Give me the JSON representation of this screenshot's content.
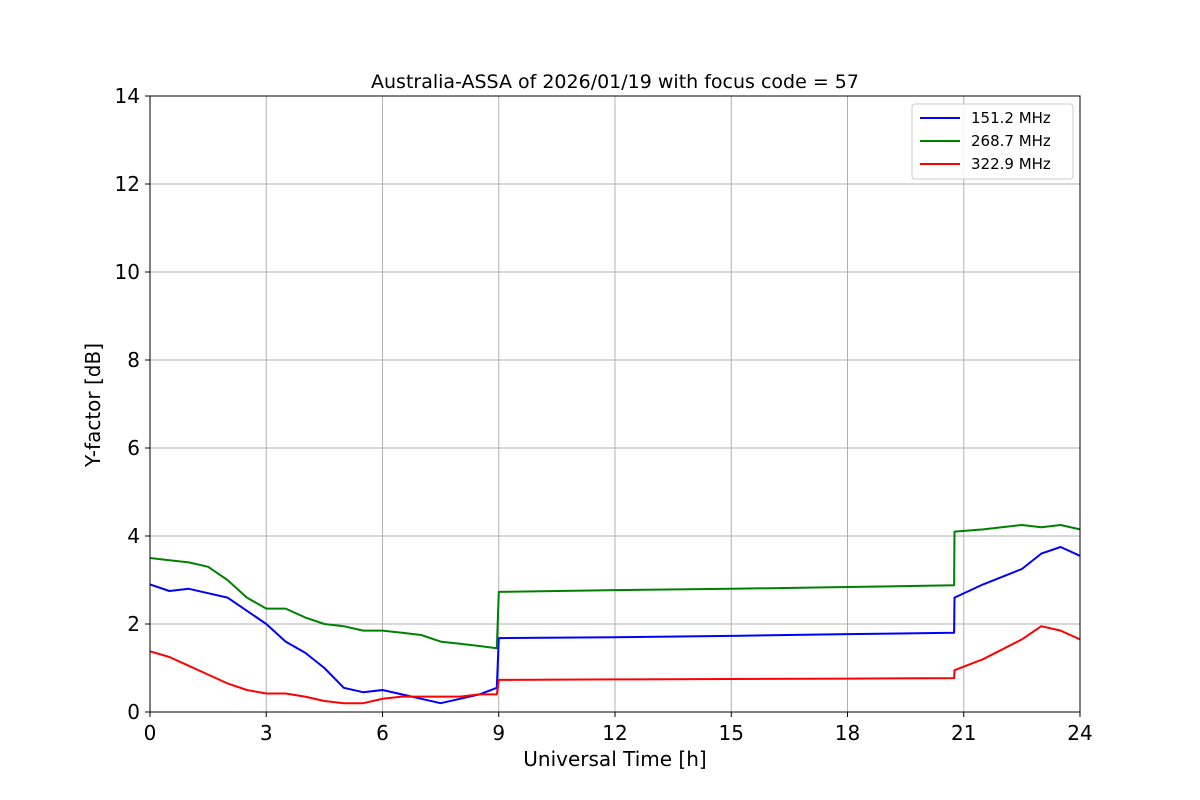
{
  "chart_data": {
    "type": "line",
    "title": "Australia-ASSA of 2026/01/19 with focus code = 57",
    "xlabel": "Universal Time [h]",
    "ylabel": "Y-factor [dB]",
    "xlim": [
      0,
      24
    ],
    "ylim": [
      0,
      14
    ],
    "xticks": [
      0,
      3,
      6,
      9,
      12,
      15,
      18,
      21,
      24
    ],
    "yticks": [
      0,
      2,
      4,
      6,
      8,
      10,
      12,
      14
    ],
    "x_tick_labels": [
      "0",
      "3",
      "6",
      "9",
      "12",
      "15",
      "18",
      "21",
      "24"
    ],
    "y_tick_labels": [
      "0",
      "2",
      "4",
      "6",
      "8",
      "10",
      "12",
      "14"
    ],
    "grid": true,
    "legend_position": "top-right",
    "series": [
      {
        "name": "151.2 MHz",
        "color": "#0000ff",
        "x": [
          0,
          0.5,
          1.0,
          1.5,
          2.0,
          2.5,
          3.0,
          3.5,
          4.0,
          4.5,
          5.0,
          5.5,
          6.0,
          6.5,
          7.0,
          7.5,
          8.0,
          8.5,
          8.95,
          9.0,
          12,
          15,
          18,
          20.75,
          20.76,
          21.5,
          22.5,
          23.0,
          23.5,
          24.0
        ],
        "y": [
          2.9,
          2.75,
          2.8,
          2.7,
          2.6,
          2.3,
          2.0,
          1.6,
          1.35,
          1.0,
          0.55,
          0.45,
          0.5,
          0.4,
          0.3,
          0.2,
          0.3,
          0.4,
          0.55,
          1.68,
          1.7,
          1.73,
          1.77,
          1.8,
          2.6,
          2.9,
          3.25,
          3.6,
          3.75,
          3.55
        ]
      },
      {
        "name": "268.7 MHz",
        "color": "#008000",
        "x": [
          0,
          0.5,
          1.0,
          1.5,
          2.0,
          2.5,
          3.0,
          3.5,
          4.0,
          4.5,
          5.0,
          5.5,
          6.0,
          6.5,
          7.0,
          7.5,
          8.0,
          8.5,
          8.95,
          9.0,
          12,
          15,
          18,
          20.75,
          20.76,
          21.5,
          22.5,
          23.0,
          23.5,
          24.0
        ],
        "y": [
          3.5,
          3.45,
          3.4,
          3.3,
          3.0,
          2.6,
          2.35,
          2.35,
          2.15,
          2.0,
          1.95,
          1.85,
          1.85,
          1.8,
          1.75,
          1.6,
          1.55,
          1.5,
          1.45,
          2.73,
          2.77,
          2.8,
          2.84,
          2.88,
          4.1,
          4.15,
          4.25,
          4.2,
          4.25,
          4.15
        ]
      },
      {
        "name": "322.9 MHz",
        "color": "#ff0000",
        "x": [
          0,
          0.5,
          1.0,
          1.5,
          2.0,
          2.5,
          3.0,
          3.5,
          4.0,
          4.5,
          5.0,
          5.5,
          6.0,
          6.5,
          7.0,
          7.5,
          8.0,
          8.5,
          8.95,
          9.0,
          12,
          15,
          18,
          20.75,
          20.76,
          21.5,
          22.5,
          23.0,
          23.5,
          24.0
        ],
        "y": [
          1.38,
          1.25,
          1.05,
          0.85,
          0.65,
          0.5,
          0.42,
          0.42,
          0.35,
          0.25,
          0.2,
          0.2,
          0.3,
          0.35,
          0.35,
          0.35,
          0.35,
          0.4,
          0.4,
          0.73,
          0.74,
          0.75,
          0.76,
          0.77,
          0.95,
          1.2,
          1.65,
          1.95,
          1.85,
          1.65
        ]
      }
    ]
  }
}
